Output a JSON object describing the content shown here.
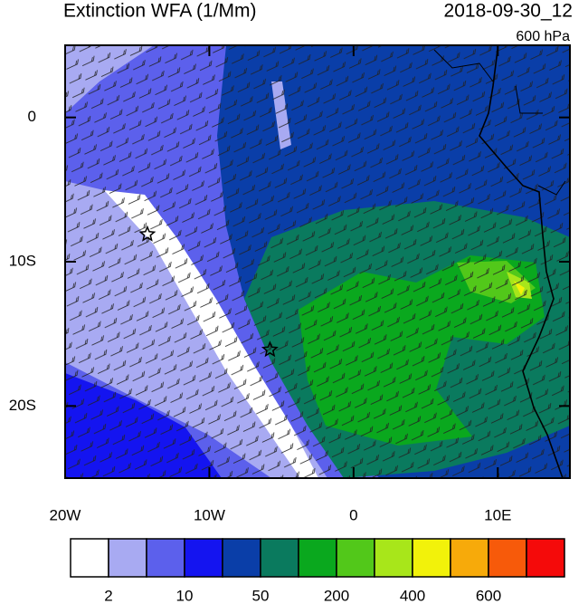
{
  "chart_data": {
    "type": "map",
    "title": "Extinction WFA (1/Mm)",
    "date": "2018-09-30_12",
    "level": "600 hPa",
    "xlim": [
      -20,
      15
    ],
    "ylim": [
      -25,
      5
    ],
    "xticks": [
      {
        "value": -20,
        "label": "20W"
      },
      {
        "value": -10,
        "label": "10W"
      },
      0,
      {
        "value": 10,
        "label": "10E"
      }
    ],
    "yticks": [
      0,
      {
        "value": -10,
        "label": "10S"
      },
      {
        "value": -20,
        "label": "20S"
      }
    ],
    "markers": [
      {
        "lon": -14.3,
        "lat": -8.1
      },
      {
        "lon": -5.8,
        "lat": -16.1
      }
    ],
    "colorbar": {
      "colors": [
        "#ffffff",
        "#a8aaf2",
        "#5c60ec",
        "#1414f0",
        "#0a3ea8",
        "#0a7a5e",
        "#0aa81e",
        "#52c81a",
        "#a8e61a",
        "#f2f20a",
        "#f7aa0a",
        "#f75a0a",
        "#f50a0a"
      ],
      "labels": [
        2,
        10,
        50,
        200,
        400,
        600
      ]
    }
  }
}
